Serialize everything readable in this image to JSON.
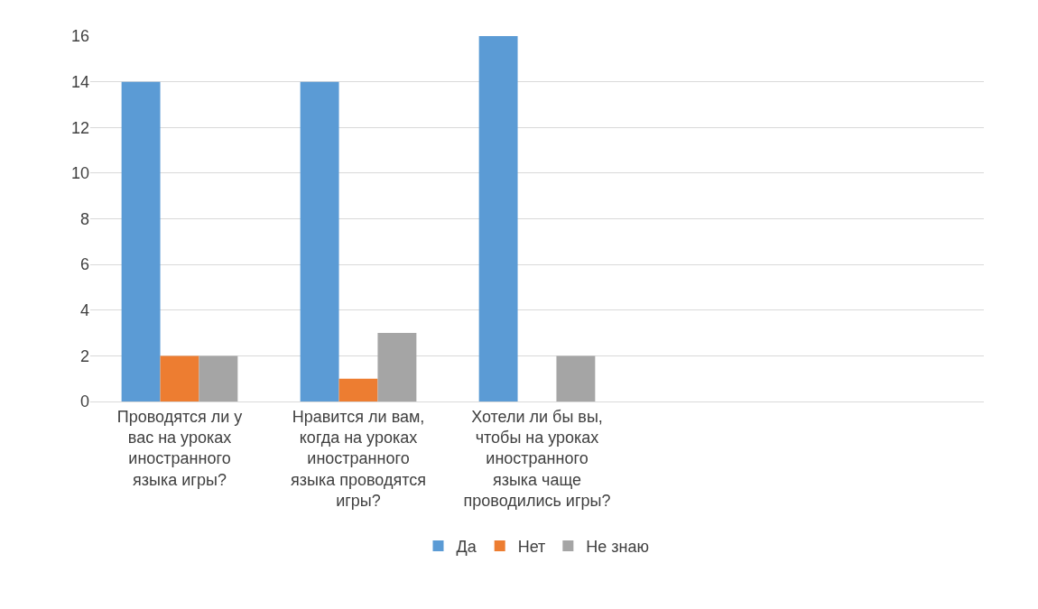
{
  "chart_data": {
    "type": "bar",
    "categories": [
      "Проводятся ли у вас на уроках иностранного языка игры?",
      "Нравится ли вам, когда на уроках иностранного языка проводятся игры?",
      "Хотели ли бы вы, чтобы на уроках иностранного языка чаще проводились игры?",
      null,
      null
    ],
    "series": [
      {
        "name": "Да",
        "color": "#5b9bd5",
        "values": [
          14,
          14,
          16,
          null,
          null
        ]
      },
      {
        "name": "Нет",
        "color": "#ed7d31",
        "values": [
          2,
          1,
          0,
          null,
          null
        ]
      },
      {
        "name": "Не знаю",
        "color": "#a5a5a5",
        "values": [
          2,
          3,
          2,
          null,
          null
        ]
      }
    ],
    "ylim": [
      0,
      16
    ],
    "yticks": [
      0,
      2,
      4,
      6,
      8,
      10,
      12,
      14,
      16
    ],
    "grid": "y",
    "legend": "bottom"
  }
}
